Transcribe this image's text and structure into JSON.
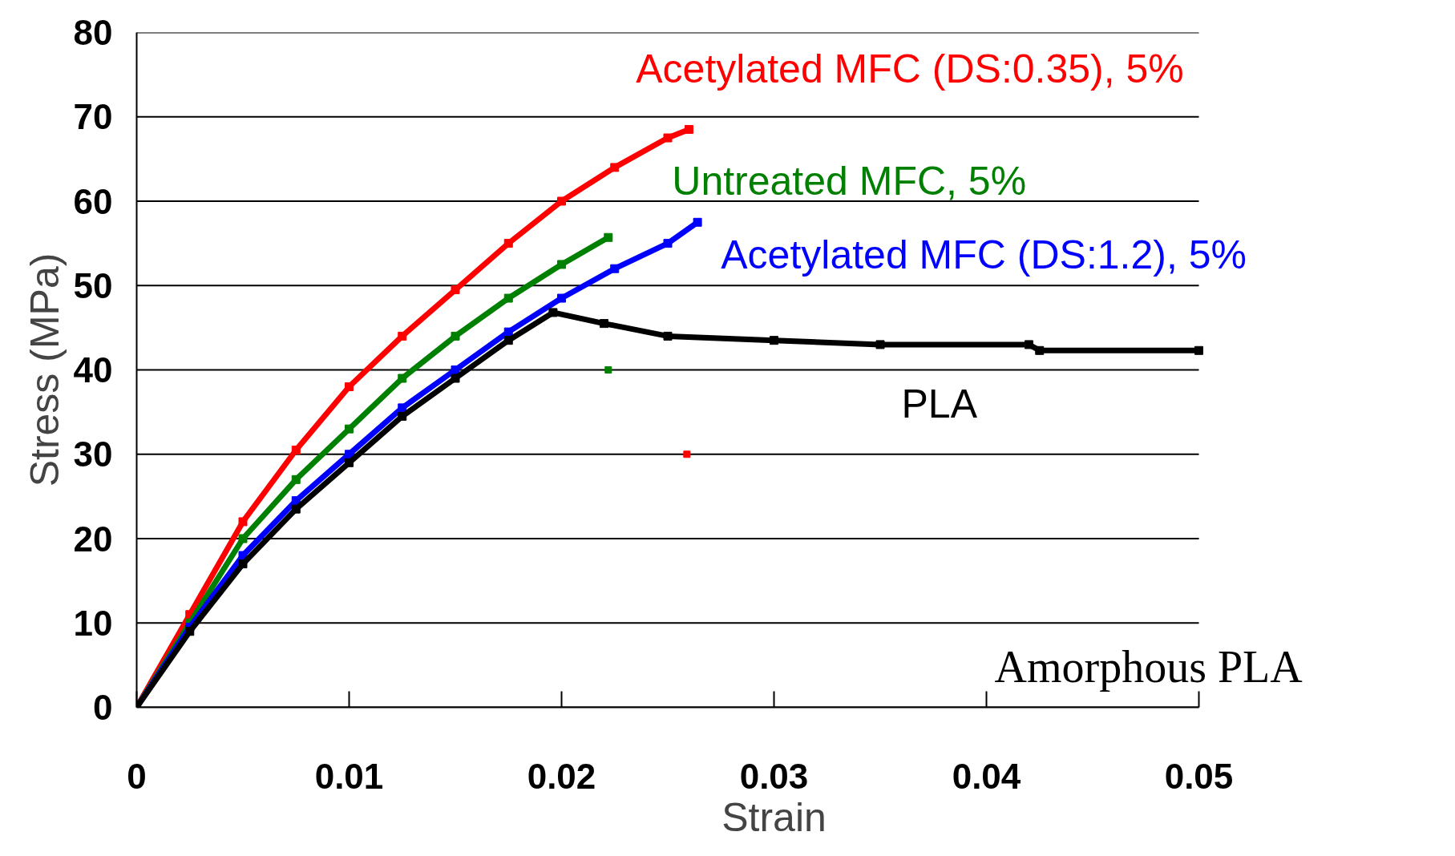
{
  "chart_data": {
    "type": "line",
    "xlabel": "Strain",
    "ylabel": "Stress (MPa)",
    "xlim": [
      0,
      0.05
    ],
    "ylim": [
      0,
      80
    ],
    "xticks": [
      0,
      0.01,
      0.02,
      0.03,
      0.04,
      0.05
    ],
    "yticks": [
      0,
      10,
      20,
      30,
      40,
      50,
      60,
      70,
      80
    ],
    "grid": "y",
    "marker": "square",
    "line_style": "solid",
    "series": [
      {
        "name": "Acetylated MFC (DS:0.35), 5%",
        "color": "#ff0000",
        "x": [
          0,
          0.0025,
          0.005,
          0.0075,
          0.01,
          0.0125,
          0.015,
          0.0175,
          0.02,
          0.0225,
          0.025,
          0.026
        ],
        "values": [
          0,
          11,
          22,
          30.5,
          38,
          44,
          49.5,
          55,
          60,
          64,
          67.5,
          68.5
        ]
      },
      {
        "name": "Untreated MFC, 5%",
        "color": "#008000",
        "x": [
          0,
          0.0025,
          0.005,
          0.0075,
          0.01,
          0.0125,
          0.015,
          0.0175,
          0.02,
          0.0222
        ],
        "values": [
          0,
          10,
          20,
          27,
          33,
          39,
          44,
          48.5,
          52.5,
          55.7
        ]
      },
      {
        "name": "Acetylated MFC (DS:1.2), 5%",
        "color": "#0000ff",
        "x": [
          0,
          0.0025,
          0.005,
          0.0075,
          0.01,
          0.0125,
          0.015,
          0.0175,
          0.02,
          0.0225,
          0.025,
          0.0264
        ],
        "values": [
          0,
          9.5,
          18,
          24.5,
          30,
          35.5,
          40,
          44.5,
          48.5,
          52,
          55,
          57.5
        ]
      },
      {
        "name": "PLA",
        "color": "#000000",
        "x": [
          0,
          0.0025,
          0.005,
          0.0075,
          0.01,
          0.0125,
          0.015,
          0.0175,
          0.0196,
          0.022,
          0.025,
          0.03,
          0.035,
          0.042,
          0.0425,
          0.05
        ],
        "values": [
          0,
          9,
          17,
          23.5,
          29,
          34.5,
          39,
          43.5,
          46.8,
          45.5,
          44,
          43.5,
          43,
          43,
          42.3,
          42.3
        ]
      },
      {
        "type": "scatter",
        "color": "#008000",
        "x": [
          0.0222
        ],
        "values": [
          40
        ]
      },
      {
        "type": "scatter",
        "color": "#ff0000",
        "x": [
          0.0259
        ],
        "values": [
          30
        ]
      }
    ],
    "annotations": [
      "Amorphous PLA"
    ]
  }
}
